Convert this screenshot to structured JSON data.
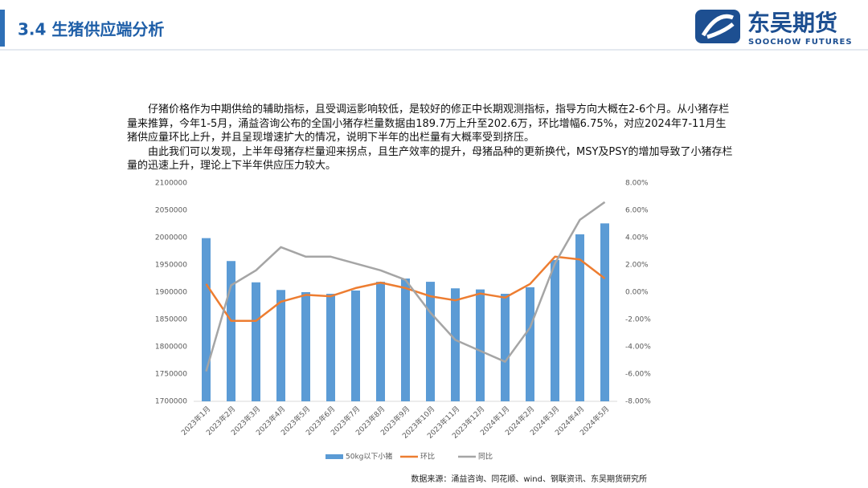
{
  "header": {
    "title": "3.4 生猪供应端分析",
    "logo_cn": "东吴期货",
    "logo_en": "SOOCHOW FUTURES"
  },
  "paragraphs": [
    "仔猪价格作为中期供给的辅助指标，且受调运影响较低，是较好的修正中长期观测指标，指导方向大概在2-6个月。从小猪存栏量来推算，今年1-5月，涌益咨询公布的全国小猪存栏量数据由189.7万上升至202.6万，环比增幅6.75%，对应2024年7-11月生猪供应量环比上升，并且呈现增速扩大的情况，说明下半年的出栏量有大概率受到挤压。",
    "由此我们可以发现，上半年母猪存栏量迎来拐点，且生产效率的提升，母猪品种的更新换代，MSY及PSY的增加导致了小猪存栏量的迅速上升，理论上下半年供应压力较大。"
  ],
  "chart_data": {
    "type": "bar-line",
    "categories": [
      "2023年1月",
      "2023年2月",
      "2023年3月",
      "2023年4月",
      "2023年5月",
      "2023年6月",
      "2023年7月",
      "2023年8月",
      "2023年9月",
      "2023年10月",
      "2023年11月",
      "2023年12月",
      "2024年1月",
      "2024年2月",
      "2024年3月",
      "2024年4月",
      "2024年5月"
    ],
    "series": [
      {
        "name": "50kg以下小猪",
        "type": "bar",
        "color": "#5b9bd5",
        "values": [
          1999000,
          1957000,
          1918000,
          1904000,
          1900000,
          1897000,
          1903000,
          1919000,
          1925000,
          1919000,
          1907000,
          1905000,
          1897000,
          1909000,
          1959000,
          2006000,
          2026000
        ]
      },
      {
        "name": "环比",
        "type": "line",
        "axis": "y2",
        "color": "#ed7d31",
        "values": [
          0.6,
          -2.1,
          -2.1,
          -0.7,
          -0.2,
          -0.3,
          0.3,
          0.7,
          0.3,
          -0.3,
          -0.6,
          -0.1,
          -0.4,
          0.6,
          2.6,
          2.4,
          1.0
        ]
      },
      {
        "name": "同比",
        "type": "line",
        "axis": "y2",
        "color": "#a5a5a5",
        "values": [
          -5.8,
          0.5,
          1.6,
          3.3,
          2.6,
          2.6,
          2.1,
          1.6,
          0.9,
          -1.5,
          -3.5,
          -4.3,
          -5.1,
          -2.6,
          2.1,
          5.3,
          6.6
        ]
      }
    ],
    "ylim": [
      1700000,
      2100000
    ],
    "yticks": [
      1700000,
      1750000,
      1800000,
      1850000,
      1900000,
      1950000,
      2000000,
      2050000,
      2100000
    ],
    "y2lim": [
      -8,
      8
    ],
    "y2ticks": [
      {
        "value": -8,
        "label": "-8.00%"
      },
      {
        "value": -6,
        "label": "-6.00%"
      },
      {
        "value": -4,
        "label": "-4.00%"
      },
      {
        "value": -2,
        "label": "-2.00%"
      },
      {
        "value": 0,
        "label": "0.00%"
      },
      {
        "value": 2,
        "label": "2.00%"
      },
      {
        "value": 4,
        "label": "4.00%"
      },
      {
        "value": 6,
        "label": "6.00%"
      },
      {
        "value": 8,
        "label": "8.00%"
      }
    ],
    "legend": "bottom",
    "grid": false
  },
  "source": "数据来源：涌益咨询、同花顺、wind、钢联资讯、东吴期货研究所"
}
